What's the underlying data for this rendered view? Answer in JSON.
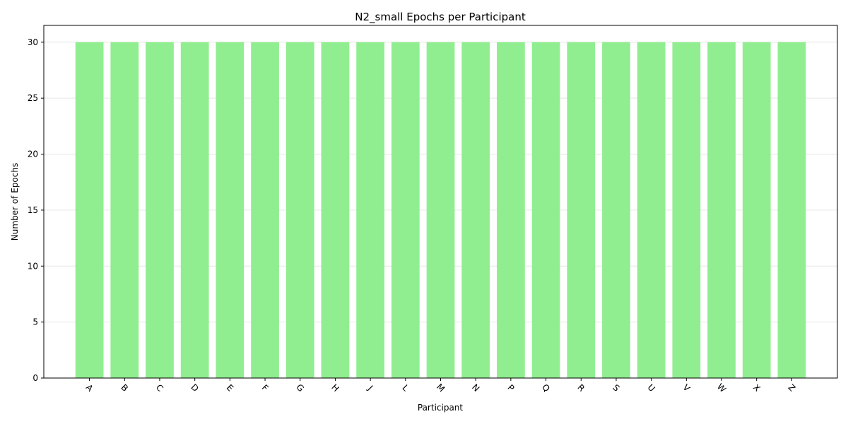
{
  "chart_data": {
    "type": "bar",
    "title": "N2_small Epochs per Participant",
    "xlabel": "Participant",
    "ylabel": "Number of Epochs",
    "categories": [
      "A",
      "B",
      "C",
      "D",
      "E",
      "F",
      "G",
      "H",
      "J",
      "L",
      "M",
      "N",
      "P",
      "Q",
      "R",
      "S",
      "U",
      "V",
      "W",
      "X",
      "Z"
    ],
    "values": [
      30,
      30,
      30,
      30,
      30,
      30,
      30,
      30,
      30,
      30,
      30,
      30,
      30,
      30,
      30,
      30,
      30,
      30,
      30,
      30,
      30
    ],
    "ylim": [
      0,
      31.5
    ],
    "yticks": [
      0,
      5,
      10,
      15,
      20,
      25,
      30
    ],
    "grid": "y-axis",
    "legend": "none",
    "xtick_rotation": 45,
    "bar_color": "#90ee90"
  }
}
